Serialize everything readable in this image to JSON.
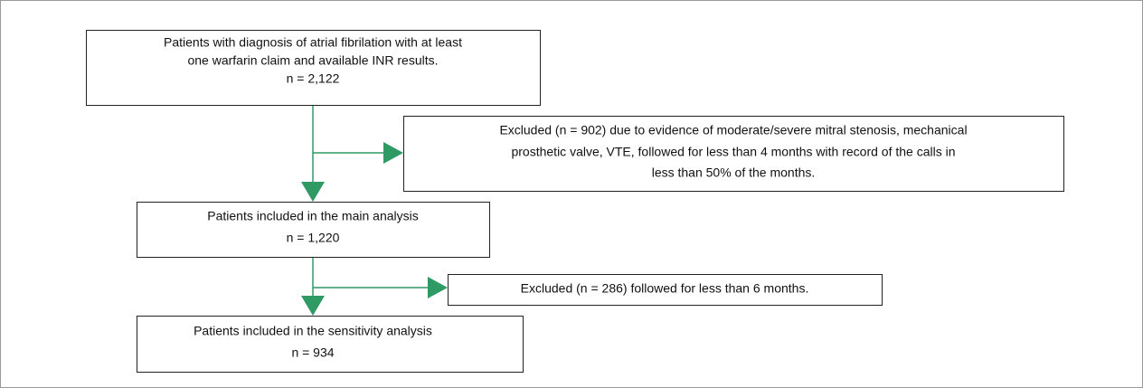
{
  "nodes": [
    {
      "lines": [
        "Patients with diagnosis of atrial fibrilation with at least",
        "one warfarin claim and available INR results.",
        "n = 2,122"
      ]
    },
    {
      "lines": [
        "Excluded (n = 902) due to evidence of moderate/severe mitral stenosis, mechanical",
        "prosthetic valve, VTE, followed for less than 4 months with record of the calls in",
        "less than 50% of the months."
      ]
    },
    {
      "lines": [
        "Patients included in the main analysis",
        "n = 1,220"
      ]
    },
    {
      "lines": [
        "Excluded (n = 286) followed for less than 6 months."
      ]
    },
    {
      "lines": [
        "Patients included in the sensitivity analysis",
        "n = 934"
      ]
    }
  ]
}
